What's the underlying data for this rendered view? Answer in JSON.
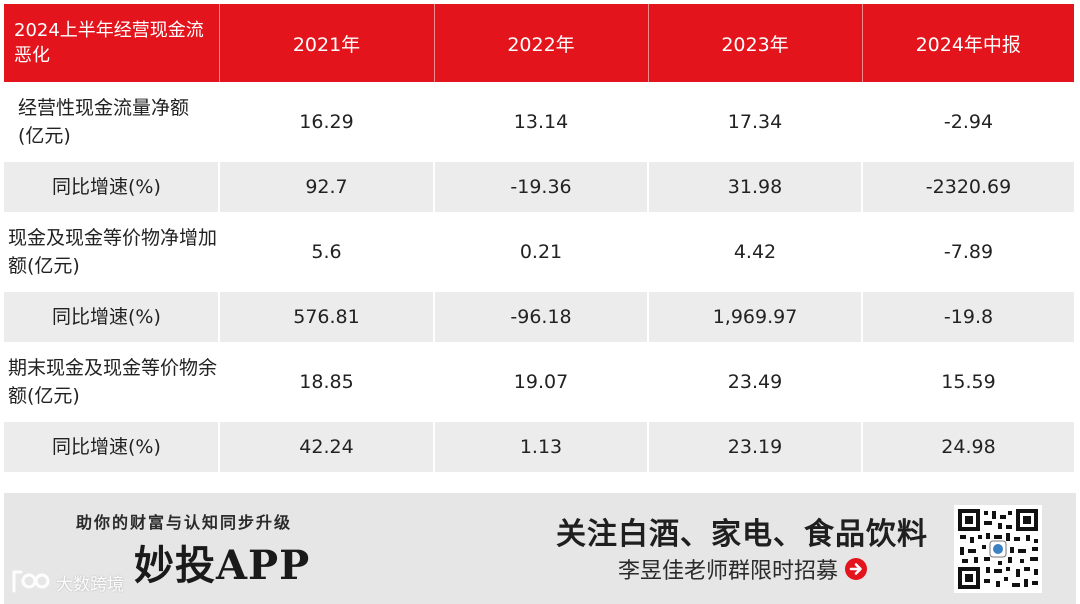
{
  "table": {
    "header": [
      "2024上半年经营现金流恶化",
      "2021年",
      "2022年",
      "2023年",
      "2024年中报"
    ],
    "rows": [
      {
        "label": "经营性现金流量净额(亿元)",
        "values": [
          "16.29",
          "13.14",
          "17.34",
          "-2.94"
        ]
      },
      {
        "label": "同比增速(%)",
        "values": [
          "92.7",
          "-19.36",
          "31.98",
          "-2320.69"
        ]
      },
      {
        "label": "现金及现金等价物净增加额(亿元)",
        "values": [
          "5.6",
          "0.21",
          "4.42",
          "-7.89"
        ]
      },
      {
        "label": "同比增速(%)",
        "values": [
          "576.81",
          "-96.18",
          "1,969.97",
          "-19.8"
        ]
      },
      {
        "label": "期末现金及现金等价物余额(亿元)",
        "values": [
          "18.85",
          "19.07",
          "23.49",
          "15.59"
        ]
      },
      {
        "label": "同比增速(%)",
        "values": [
          "42.24",
          "1.13",
          "23.19",
          "24.98"
        ]
      }
    ]
  },
  "banner": {
    "slogan": "助你的财富与认知同步升级",
    "brand": "妙投APP",
    "headline": "关注白酒、家电、食品饮料",
    "subline": "李昱佳老师群限时招募",
    "arrow_icon": "arrow-right-circle-icon",
    "qr_icon": "qr-code-icon"
  },
  "watermark": {
    "text": "大数跨境",
    "logo_icon": "dashuju-logo-icon"
  },
  "colors": {
    "header_bg": "#e3141c",
    "row_gray": "#ececec",
    "banner_bg": "#e6e6e6",
    "arrow": "#e3141c"
  }
}
